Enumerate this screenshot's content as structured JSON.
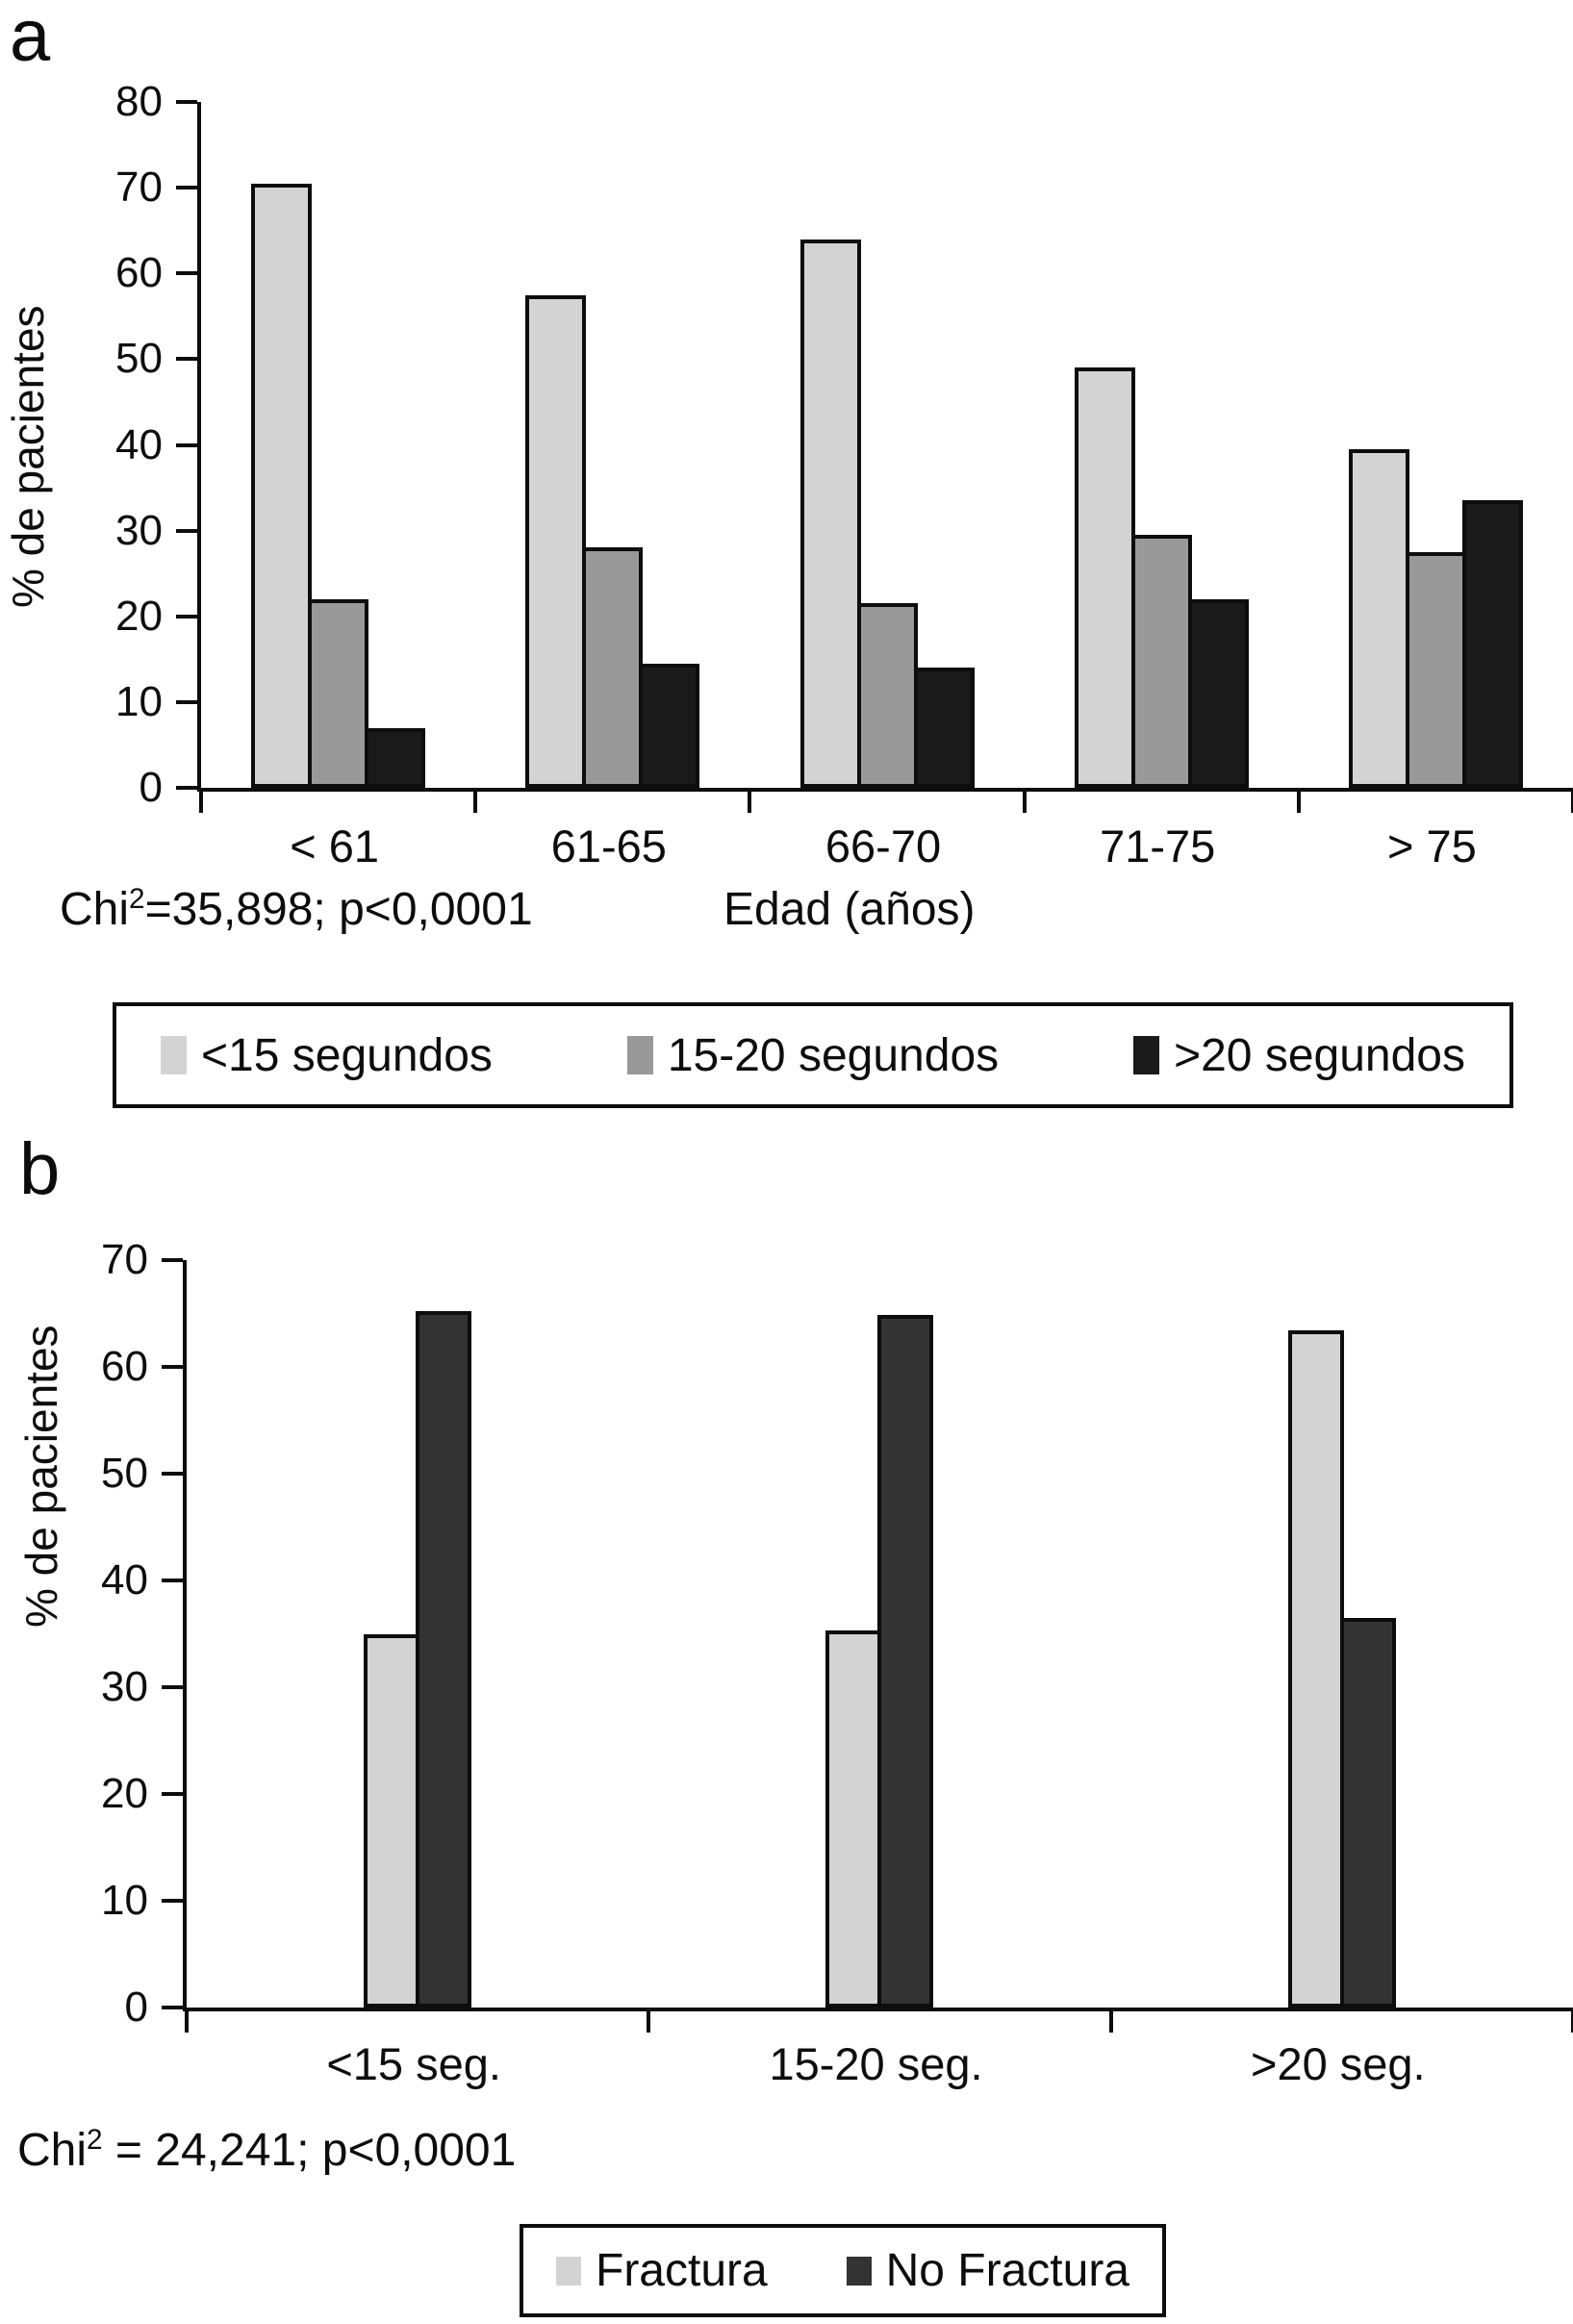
{
  "panel_a": {
    "label": "a",
    "ylabel": "% de pacientes",
    "xlabel": "Edad (años)",
    "chi": {
      "base": "Chi",
      "sup": "2",
      "rest": "=35,898; p<0,0001"
    }
  },
  "panel_b": {
    "label": "b",
    "ylabel": "% de pacientes",
    "chi": {
      "base": "Chi",
      "sup": "2",
      "rest": " = 24,241; p<0,0001"
    }
  },
  "chart_data": [
    {
      "id": "a",
      "type": "bar",
      "title": "",
      "categories": [
        "< 61",
        "61-65",
        "66-70",
        "71-75",
        "> 75"
      ],
      "series": [
        {
          "name": "<15 segundos",
          "color": "#d3d3d3",
          "values": [
            70.5,
            57.5,
            64.0,
            49.0,
            39.5
          ]
        },
        {
          "name": "15-20 segundos",
          "color": "#999999",
          "values": [
            22.0,
            28.0,
            21.5,
            29.5,
            27.5
          ]
        },
        {
          "name": ">20 segundos",
          "color": "#1a1a1a",
          "values": [
            7.0,
            14.5,
            14.0,
            22.0,
            33.5
          ]
        }
      ],
      "ylabel": "% de pacientes",
      "xlabel": "Edad (años)",
      "ylim": [
        0,
        80
      ],
      "ytick_step": 10,
      "grid": false,
      "legend_position": "bottom",
      "annotation": "Chi2=35,898; p<0,0001"
    },
    {
      "id": "b",
      "type": "bar",
      "title": "",
      "categories": [
        "<15 seg.",
        "15-20 seg.",
        ">20 seg."
      ],
      "series": [
        {
          "name": "Fractura",
          "color": "#d3d3d3",
          "values": [
            35.0,
            35.3,
            63.4
          ]
        },
        {
          "name": "No Fractura",
          "color": "#333333",
          "values": [
            65.2,
            64.9,
            36.5
          ]
        }
      ],
      "ylabel": "% de pacientes",
      "xlabel": "",
      "ylim": [
        0,
        70
      ],
      "ytick_step": 10,
      "grid": false,
      "legend_position": "bottom",
      "annotation": "Chi2 = 24,241; p<0,0001"
    }
  ]
}
